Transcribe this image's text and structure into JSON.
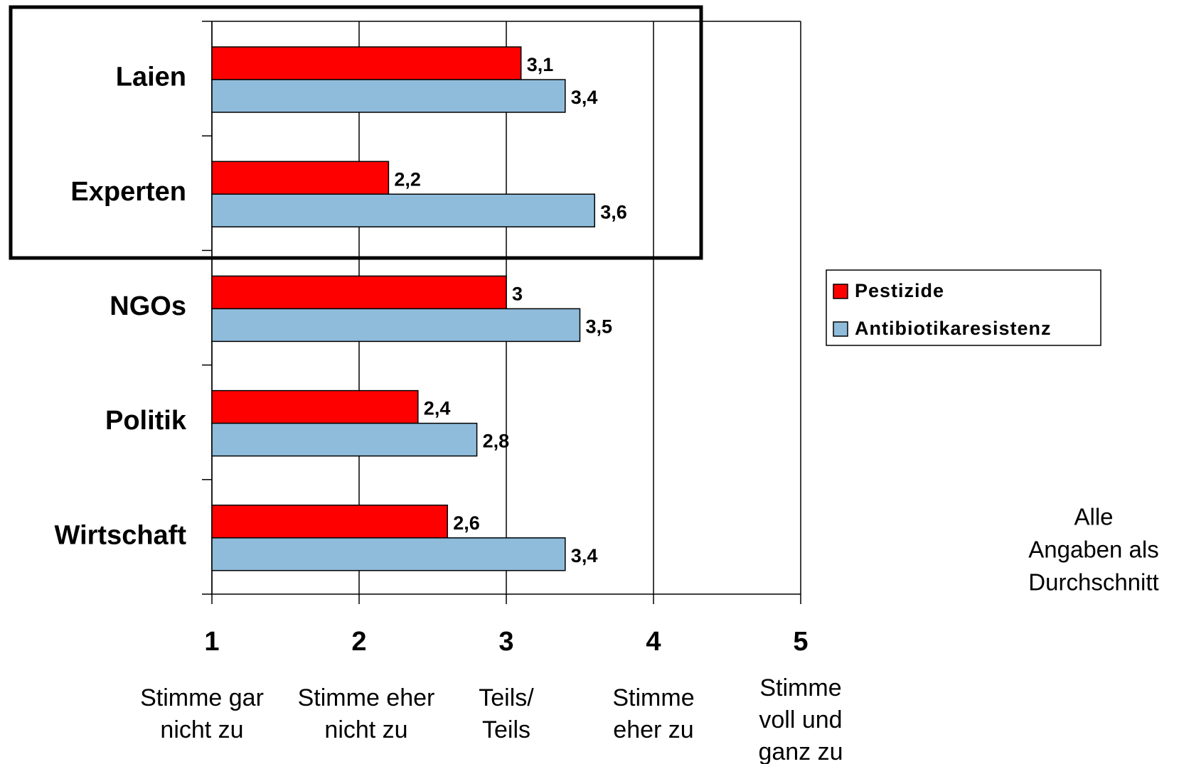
{
  "chart_data": {
    "type": "barh",
    "categories": [
      "Laien",
      "Experten",
      "NGOs",
      "Politik",
      "Wirtschaft"
    ],
    "series": [
      {
        "name": "Pestizide",
        "color": "#ff0000",
        "values": [
          3.1,
          2.2,
          3,
          2.4,
          2.6
        ],
        "value_labels": [
          "3,1",
          "2,2",
          "3",
          "2,4",
          "2,6"
        ]
      },
      {
        "name": "Antibiotikaresistenz",
        "color": "#8fbcdb",
        "values": [
          3.4,
          3.6,
          3.5,
          2.8,
          3.4
        ],
        "value_labels": [
          "3,4",
          "3,6",
          "3,5",
          "2,8",
          "3,4"
        ]
      }
    ],
    "xlim": [
      1,
      5
    ],
    "xticks": [
      1,
      2,
      3,
      4,
      5
    ],
    "xtick_descriptions": [
      [
        "Stimme gar",
        "nicht zu"
      ],
      [
        "Stimme eher",
        "nicht zu"
      ],
      [
        "Teils/",
        "Teils"
      ],
      [
        "Stimme",
        "eher zu"
      ],
      [
        "Stimme",
        "voll und",
        "ganz zu"
      ]
    ],
    "annotation": [
      "Alle",
      "Angaben als",
      "Durchschnitt"
    ],
    "grid": true,
    "legend": "right"
  }
}
